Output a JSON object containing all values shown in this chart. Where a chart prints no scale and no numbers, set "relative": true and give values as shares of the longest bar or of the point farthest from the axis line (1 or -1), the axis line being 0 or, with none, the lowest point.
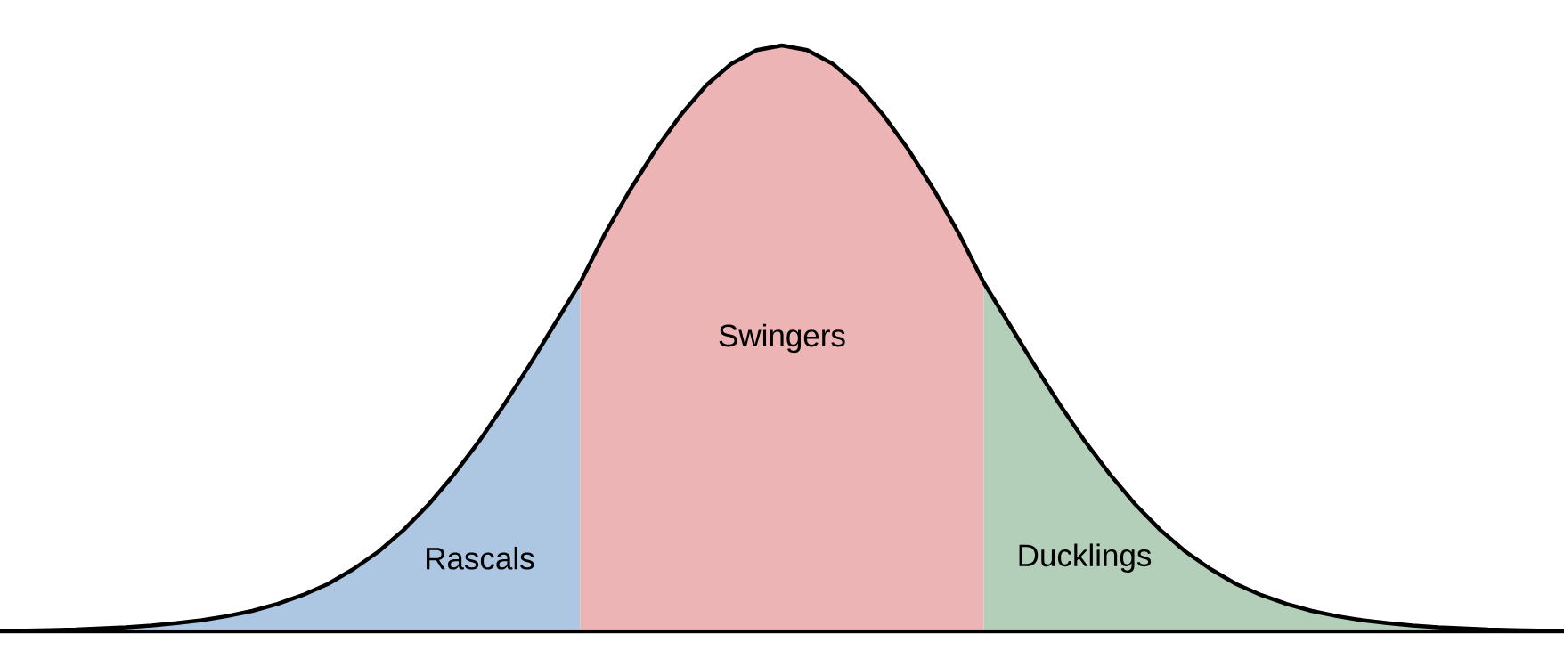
{
  "chart_data": {
    "type": "area",
    "relative": true,
    "categories": [
      null,
      null,
      null,
      null,
      null,
      null,
      null,
      null,
      null,
      null,
      null,
      null,
      null,
      null,
      null,
      null,
      null,
      null,
      null,
      null,
      null,
      null,
      null,
      null,
      null,
      null,
      null,
      null,
      null,
      null,
      null,
      null,
      null,
      null,
      null,
      null,
      null,
      null,
      null,
      null,
      null,
      null,
      null,
      null,
      null,
      null,
      null,
      null,
      null,
      null,
      null,
      null,
      null,
      null,
      null,
      null,
      null,
      null,
      null,
      null,
      null,
      null,
      null
    ],
    "series": [
      {
        "name": "Rascals",
        "color": "#adc6e2",
        "values": [
          0.001,
          0.001,
          0.002,
          0.003,
          0.005,
          0.007,
          0.01,
          0.014,
          0.019,
          0.026,
          0.035,
          0.047,
          0.062,
          0.081,
          0.106,
          0.136,
          0.173,
          0.217,
          0.268,
          0.325,
          0.388,
          0.455,
          0.525,
          0.595,
          null,
          null,
          null,
          null,
          null,
          null,
          null,
          null,
          null,
          null,
          null,
          null,
          null,
          null,
          null,
          null,
          null,
          null,
          null,
          null,
          null,
          null,
          null,
          null,
          null,
          null,
          null,
          null,
          null,
          null,
          null,
          null,
          null,
          null,
          null,
          null,
          null,
          null,
          null
        ]
      },
      {
        "name": "Swingers",
        "color": "#ecb4b4",
        "values": [
          null,
          null,
          null,
          null,
          null,
          null,
          null,
          null,
          null,
          null,
          null,
          null,
          null,
          null,
          null,
          null,
          null,
          null,
          null,
          null,
          null,
          null,
          null,
          0.595,
          0.68,
          0.755,
          0.823,
          0.882,
          0.932,
          0.969,
          0.992,
          1.0,
          0.992,
          0.969,
          0.932,
          0.882,
          0.823,
          0.755,
          0.68,
          0.595,
          null,
          null,
          null,
          null,
          null,
          null,
          null,
          null,
          null,
          null,
          null,
          null,
          null,
          null,
          null,
          null,
          null,
          null,
          null,
          null,
          null,
          null,
          null
        ]
      },
      {
        "name": "Ducklings",
        "color": "#b3ceb9",
        "values": [
          null,
          null,
          null,
          null,
          null,
          null,
          null,
          null,
          null,
          null,
          null,
          null,
          null,
          null,
          null,
          null,
          null,
          null,
          null,
          null,
          null,
          null,
          null,
          null,
          null,
          null,
          null,
          null,
          null,
          null,
          null,
          null,
          null,
          null,
          null,
          null,
          null,
          null,
          null,
          0.595,
          0.525,
          0.455,
          0.388,
          0.325,
          0.268,
          0.217,
          0.173,
          0.136,
          0.106,
          0.081,
          0.062,
          0.047,
          0.035,
          0.026,
          0.019,
          0.014,
          0.01,
          0.007,
          0.005,
          0.003,
          0.002,
          0.001,
          0.001
        ]
      },
      {
        "type": "line",
        "color": "#000000",
        "values": [
          0.001,
          0.001,
          0.002,
          0.003,
          0.005,
          0.007,
          0.01,
          0.014,
          0.019,
          0.026,
          0.035,
          0.047,
          0.062,
          0.081,
          0.106,
          0.136,
          0.173,
          0.217,
          0.268,
          0.325,
          0.388,
          0.455,
          0.525,
          0.595,
          0.68,
          0.755,
          0.823,
          0.882,
          0.932,
          0.969,
          0.992,
          1.0,
          0.992,
          0.969,
          0.932,
          0.882,
          0.823,
          0.755,
          0.68,
          0.595,
          0.525,
          0.455,
          0.388,
          0.325,
          0.268,
          0.217,
          0.173,
          0.136,
          0.106,
          0.081,
          0.062,
          0.047,
          0.035,
          0.026,
          0.019,
          0.014,
          0.01,
          0.007,
          0.005,
          0.003,
          0.002,
          0.001,
          0.001
        ]
      }
    ]
  }
}
